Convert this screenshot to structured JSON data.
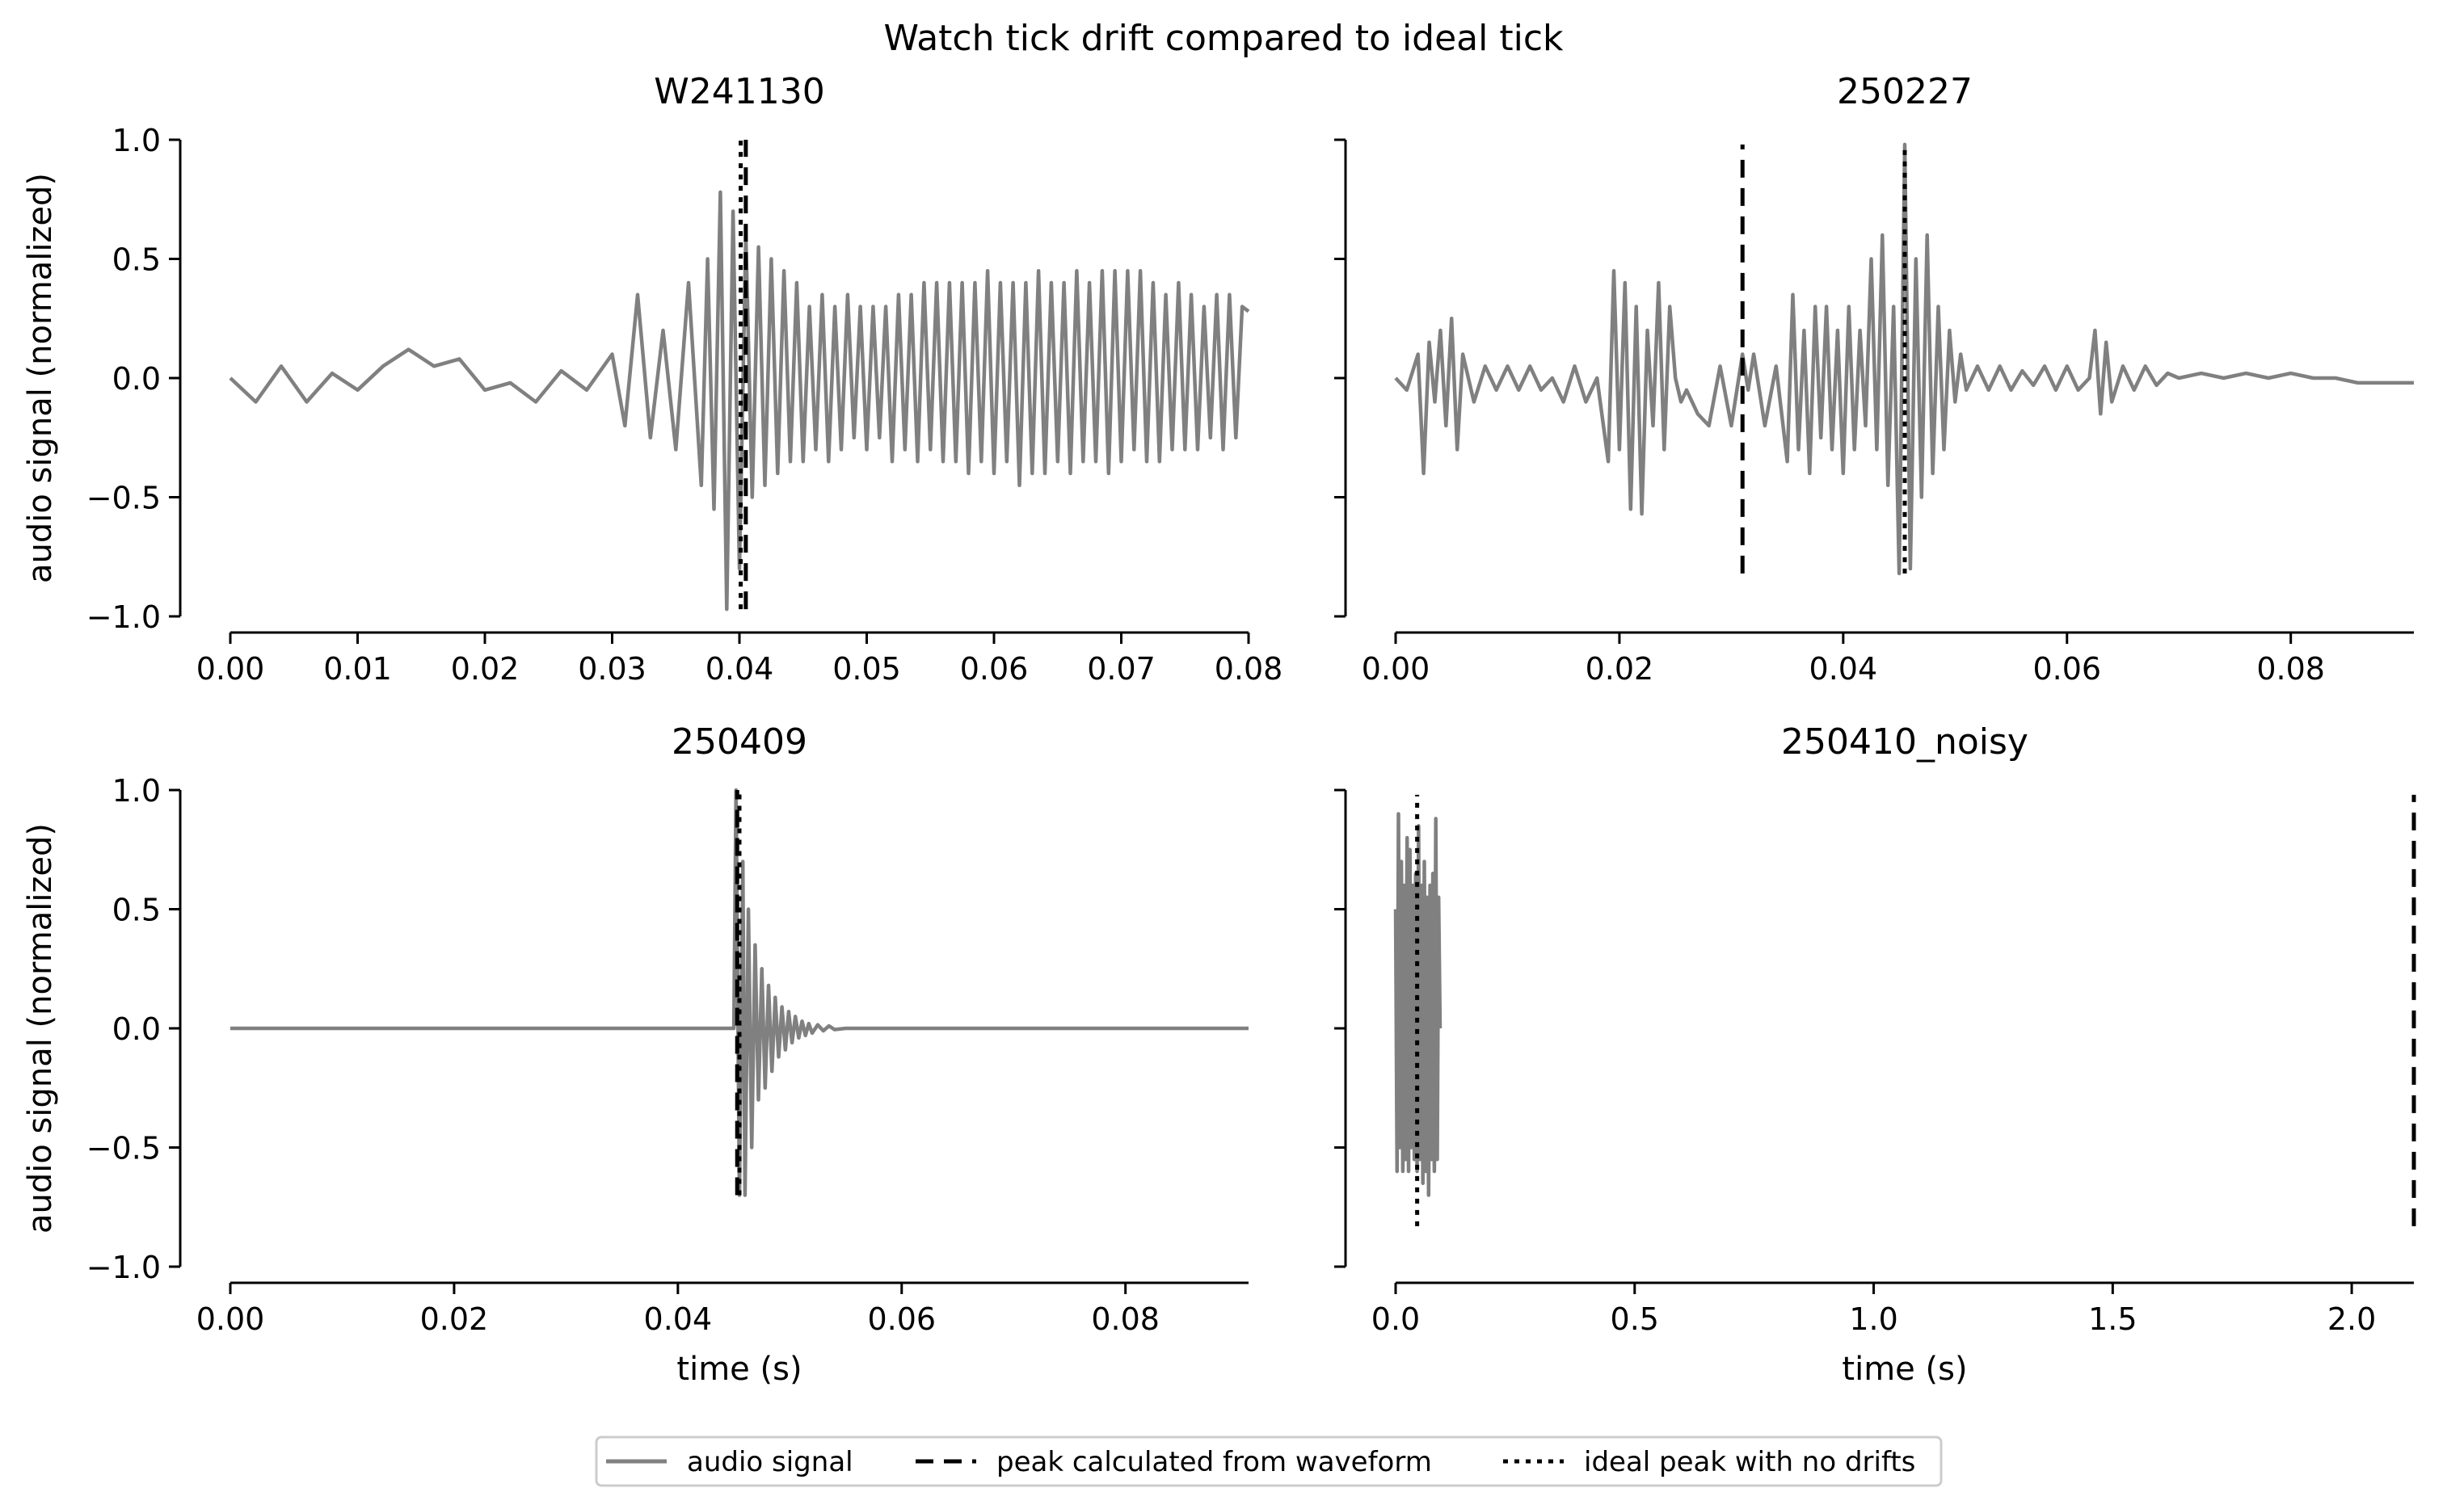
{
  "suptitle": "Watch tick drift compared to ideal tick",
  "colors": {
    "audio": "#808080",
    "peak": "#000000",
    "ideal": "#000000",
    "axis": "#000000"
  },
  "legend": {
    "placement": "bottom-center",
    "items": [
      {
        "label": "audio signal",
        "style": "solid",
        "color": "#808080"
      },
      {
        "label": "peak calculated from waveform",
        "style": "dashed",
        "color": "#000000"
      },
      {
        "label": "ideal peak with no drifts",
        "style": "dotted",
        "color": "#000000"
      }
    ]
  },
  "chart_data": [
    {
      "type": "line",
      "title": "W241130",
      "xlabel": "",
      "ylabel": "audio signal (normalized)",
      "xlim": [
        0.0,
        0.08
      ],
      "ylim": [
        -1.0,
        1.0
      ],
      "xticks": [
        0.0,
        0.01,
        0.02,
        0.03,
        0.04,
        0.05,
        0.06,
        0.07,
        0.08
      ],
      "xtick_labels": [
        "0.00",
        "0.01",
        "0.02",
        "0.03",
        "0.04",
        "0.05",
        "0.06",
        "0.07",
        "0.08"
      ],
      "yticks": [
        -1.0,
        -0.5,
        0.0,
        0.5,
        1.0
      ],
      "ytick_labels": [
        "−1.0",
        "−0.5",
        "0.0",
        "0.5",
        "1.0"
      ],
      "peak_x": 0.0405,
      "ideal_x": 0.0401,
      "vline_range": [
        -0.97,
        1.0
      ],
      "series": [
        {
          "x": [
            0.0,
            0.002,
            0.004,
            0.006,
            0.008,
            0.01,
            0.012,
            0.014,
            0.016,
            0.018,
            0.02,
            0.022,
            0.024,
            0.026,
            0.028,
            0.03,
            0.031,
            0.032,
            0.033,
            0.034,
            0.035,
            0.036,
            0.037,
            0.0375,
            0.038,
            0.0385,
            0.039,
            0.0395,
            0.04,
            0.0405,
            0.041,
            0.0415,
            0.042,
            0.0425,
            0.043,
            0.0435,
            0.044,
            0.0445,
            0.045,
            0.0455,
            0.046,
            0.0465,
            0.047,
            0.0475,
            0.048,
            0.0485,
            0.049,
            0.0495,
            0.05,
            0.0505,
            0.051,
            0.0515,
            0.052,
            0.0525,
            0.053,
            0.0535,
            0.054,
            0.0545,
            0.055,
            0.0555,
            0.056,
            0.0565,
            0.057,
            0.0575,
            0.058,
            0.0585,
            0.059,
            0.0595,
            0.06,
            0.0605,
            0.061,
            0.0615,
            0.062,
            0.0625,
            0.063,
            0.0635,
            0.064,
            0.0645,
            0.065,
            0.0655,
            0.066,
            0.0665,
            0.067,
            0.0675,
            0.068,
            0.0685,
            0.069,
            0.0695,
            0.07,
            0.0705,
            0.071,
            0.0715,
            0.072,
            0.0725,
            0.073,
            0.0735,
            0.074,
            0.0745,
            0.075,
            0.0755,
            0.076,
            0.0765,
            0.077,
            0.0775,
            0.078,
            0.0785,
            0.079,
            0.0795,
            0.08
          ],
          "values": [
            0.0,
            -0.1,
            0.05,
            -0.1,
            0.02,
            -0.05,
            0.05,
            0.12,
            0.05,
            0.08,
            -0.05,
            -0.02,
            -0.1,
            0.03,
            -0.05,
            0.1,
            -0.2,
            0.35,
            -0.25,
            0.2,
            -0.3,
            0.4,
            -0.45,
            0.5,
            -0.55,
            0.78,
            -0.97,
            0.7,
            -0.8,
            0.6,
            -0.5,
            0.55,
            -0.45,
            0.5,
            -0.4,
            0.45,
            -0.35,
            0.4,
            -0.35,
            0.3,
            -0.3,
            0.35,
            -0.35,
            0.3,
            -0.3,
            0.35,
            -0.25,
            0.3,
            -0.3,
            0.3,
            -0.25,
            0.3,
            -0.35,
            0.35,
            -0.3,
            0.35,
            -0.35,
            0.4,
            -0.3,
            0.4,
            -0.35,
            0.4,
            -0.35,
            0.4,
            -0.4,
            0.4,
            -0.35,
            0.45,
            -0.4,
            0.4,
            -0.35,
            0.4,
            -0.45,
            0.4,
            -0.4,
            0.45,
            -0.4,
            0.4,
            -0.35,
            0.4,
            -0.4,
            0.45,
            -0.35,
            0.4,
            -0.35,
            0.45,
            -0.4,
            0.45,
            -0.35,
            0.45,
            -0.3,
            0.45,
            -0.35,
            0.4,
            -0.35,
            0.35,
            -0.3,
            0.4,
            -0.3,
            0.35,
            -0.3,
            0.3,
            -0.25,
            0.35,
            -0.3,
            0.35,
            -0.25,
            0.3,
            0.28
          ]
        }
      ]
    },
    {
      "type": "line",
      "title": "250227",
      "xlabel": "",
      "ylabel": "",
      "xlim": [
        0.0,
        0.091
      ],
      "ylim": [
        -1.0,
        1.0
      ],
      "xticks": [
        0.0,
        0.02,
        0.04,
        0.06,
        0.08
      ],
      "xtick_labels": [
        "0.00",
        "0.02",
        "0.04",
        "0.06",
        "0.08"
      ],
      "yticks": [
        -1.0,
        -0.5,
        0.0,
        0.5,
        1.0
      ],
      "ytick_labels": [
        "",
        "",
        "",
        "",
        ""
      ],
      "peak_x": 0.031,
      "ideal_x": 0.0455,
      "vline_range": [
        -0.82,
        0.98
      ],
      "series": [
        {
          "x": [
            0.0,
            0.001,
            0.002,
            0.0025,
            0.003,
            0.0035,
            0.004,
            0.0045,
            0.005,
            0.0055,
            0.006,
            0.007,
            0.008,
            0.009,
            0.01,
            0.011,
            0.012,
            0.013,
            0.014,
            0.015,
            0.016,
            0.017,
            0.018,
            0.019,
            0.0195,
            0.02,
            0.0205,
            0.021,
            0.0215,
            0.022,
            0.0225,
            0.023,
            0.0235,
            0.024,
            0.0245,
            0.025,
            0.0255,
            0.026,
            0.027,
            0.028,
            0.029,
            0.03,
            0.031,
            0.0315,
            0.032,
            0.033,
            0.034,
            0.035,
            0.0355,
            0.036,
            0.0365,
            0.037,
            0.0375,
            0.038,
            0.0385,
            0.039,
            0.0395,
            0.04,
            0.0405,
            0.041,
            0.0415,
            0.042,
            0.0425,
            0.043,
            0.0435,
            0.044,
            0.0445,
            0.045,
            0.0455,
            0.046,
            0.0465,
            0.047,
            0.0475,
            0.048,
            0.0485,
            0.049,
            0.0495,
            0.05,
            0.0505,
            0.051,
            0.052,
            0.053,
            0.054,
            0.055,
            0.056,
            0.057,
            0.058,
            0.059,
            0.06,
            0.061,
            0.062,
            0.0625,
            0.063,
            0.0635,
            0.064,
            0.065,
            0.066,
            0.067,
            0.068,
            0.069,
            0.07,
            0.072,
            0.074,
            0.076,
            0.078,
            0.08,
            0.082,
            0.084,
            0.086,
            0.088,
            0.09,
            0.091
          ],
          "values": [
            0.0,
            -0.05,
            0.1,
            -0.4,
            0.15,
            -0.1,
            0.2,
            -0.2,
            0.25,
            -0.3,
            0.1,
            -0.1,
            0.05,
            -0.05,
            0.05,
            -0.05,
            0.05,
            -0.05,
            0.0,
            -0.1,
            0.05,
            -0.1,
            0.0,
            -0.35,
            0.45,
            -0.3,
            0.4,
            -0.55,
            0.3,
            -0.57,
            0.2,
            -0.2,
            0.4,
            -0.3,
            0.3,
            0.0,
            -0.1,
            -0.05,
            -0.15,
            -0.2,
            0.05,
            -0.2,
            0.1,
            -0.05,
            0.1,
            -0.2,
            0.05,
            -0.35,
            0.35,
            -0.3,
            0.2,
            -0.4,
            0.3,
            -0.25,
            0.3,
            -0.3,
            0.2,
            -0.4,
            0.3,
            -0.3,
            0.2,
            -0.2,
            0.5,
            -0.3,
            0.6,
            -0.45,
            0.3,
            -0.82,
            0.98,
            -0.8,
            0.5,
            -0.5,
            0.6,
            -0.4,
            0.3,
            -0.3,
            0.2,
            -0.1,
            0.1,
            -0.05,
            0.05,
            -0.05,
            0.05,
            -0.05,
            0.03,
            -0.03,
            0.05,
            -0.05,
            0.05,
            -0.05,
            0.0,
            0.2,
            -0.15,
            0.15,
            -0.1,
            0.05,
            -0.05,
            0.05,
            -0.03,
            0.02,
            0.0,
            0.02,
            0.0,
            0.02,
            0.0,
            0.02,
            0.0,
            0.0,
            -0.02,
            -0.02,
            -0.02,
            -0.02
          ]
        }
      ]
    },
    {
      "type": "line",
      "title": "250409",
      "xlabel": "time (s)",
      "ylabel": "audio signal (normalized)",
      "xlim": [
        0.0,
        0.091
      ],
      "ylim": [
        -1.0,
        1.0
      ],
      "xticks": [
        0.0,
        0.02,
        0.04,
        0.06,
        0.08
      ],
      "xtick_labels": [
        "0.00",
        "0.02",
        "0.04",
        "0.06",
        "0.08"
      ],
      "yticks": [
        -1.0,
        -0.5,
        0.0,
        0.5,
        1.0
      ],
      "ytick_labels": [
        "−1.0",
        "−0.5",
        "0.0",
        "0.5",
        "1.0"
      ],
      "peak_x": 0.0453,
      "ideal_x": 0.0455,
      "vline_range": [
        -0.7,
        1.0
      ],
      "series": [
        {
          "x": [
            0.0,
            0.045,
            0.0452,
            0.0455,
            0.0458,
            0.046,
            0.0463,
            0.0466,
            0.0469,
            0.0472,
            0.0475,
            0.0478,
            0.0481,
            0.0484,
            0.0487,
            0.049,
            0.0493,
            0.0496,
            0.0499,
            0.0502,
            0.0505,
            0.0508,
            0.0511,
            0.0514,
            0.0517,
            0.052,
            0.0525,
            0.053,
            0.0535,
            0.054,
            0.055,
            0.091
          ],
          "values": [
            0.0,
            0.0,
            1.0,
            -0.7,
            0.7,
            -0.7,
            0.5,
            -0.5,
            0.35,
            -0.3,
            0.25,
            -0.25,
            0.18,
            -0.18,
            0.13,
            -0.12,
            0.09,
            -0.09,
            0.07,
            -0.06,
            0.05,
            -0.04,
            0.03,
            -0.03,
            0.02,
            -0.02,
            0.015,
            -0.01,
            0.01,
            -0.005,
            0.0,
            0.0
          ]
        }
      ]
    },
    {
      "type": "line",
      "title": "250410_noisy",
      "xlabel": "time (s)",
      "ylabel": "",
      "xlim": [
        0.0,
        2.13
      ],
      "ylim": [
        -1.0,
        1.0
      ],
      "xticks": [
        0.0,
        0.5,
        1.0,
        1.5,
        2.0
      ],
      "xtick_labels": [
        "0.0",
        "0.5",
        "1.0",
        "1.5",
        "2.0"
      ],
      "yticks": [
        -1.0,
        -0.5,
        0.0,
        0.5,
        1.0
      ],
      "ytick_labels": [
        "",
        "",
        "",
        "",
        ""
      ],
      "peak_x": 2.13,
      "ideal_x": 0.045,
      "vline_range": [
        -0.83,
        0.98
      ],
      "series": [
        {
          "x": [
            0.0,
            0.003,
            0.006,
            0.009,
            0.012,
            0.015,
            0.018,
            0.021,
            0.024,
            0.027,
            0.03,
            0.033,
            0.036,
            0.039,
            0.042,
            0.045,
            0.048,
            0.051,
            0.054,
            0.057,
            0.06,
            0.063,
            0.066,
            0.069,
            0.072,
            0.075,
            0.078,
            0.081,
            0.084,
            0.087,
            0.09,
            0.093
          ],
          "values": [
            0.5,
            -0.6,
            0.9,
            -0.5,
            0.7,
            -0.6,
            0.6,
            -0.55,
            0.8,
            -0.6,
            0.75,
            -0.5,
            0.6,
            -0.55,
            0.65,
            -0.6,
            0.85,
            -0.55,
            0.6,
            -0.65,
            0.7,
            -0.6,
            0.55,
            -0.7,
            0.6,
            -0.55,
            0.65,
            -0.6,
            0.88,
            -0.55,
            0.55,
            0.0
          ]
        }
      ]
    }
  ]
}
